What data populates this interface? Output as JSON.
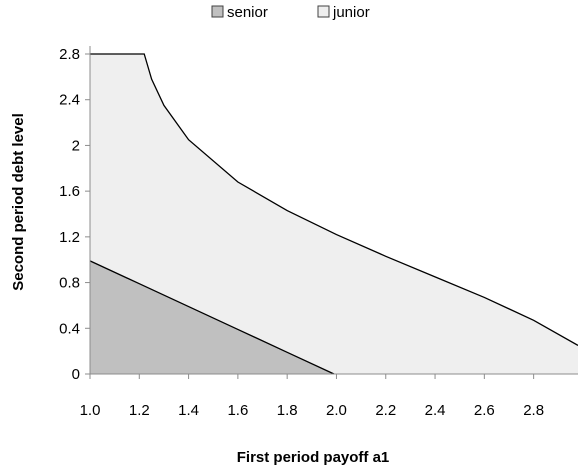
{
  "chart_data": {
    "type": "area",
    "xlabel": "First period payoff a1",
    "ylabel": "Second period debt level",
    "xlim": [
      1.0,
      2.98
    ],
    "ylim": [
      0,
      2.8
    ],
    "x_ticks": [
      "1.0",
      "1.2",
      "1.4",
      "1.6",
      "1.8",
      "2.0",
      "2.2",
      "2.4",
      "2.6",
      "2.8"
    ],
    "y_ticks": [
      "0",
      "0.4",
      "0.8",
      "1.2",
      "1.6",
      "2",
      "2.4",
      "2.8"
    ],
    "legend_position": "top",
    "series": [
      {
        "name": "senior",
        "color": "#c0c0c0",
        "x": [
          1.0,
          1.2,
          1.4,
          1.6,
          1.8,
          1.99
        ],
        "y": [
          0.99,
          0.79,
          0.59,
          0.39,
          0.19,
          0.0
        ]
      },
      {
        "name": "junior",
        "color": "#efefef",
        "x": [
          1.0,
          1.22,
          1.25,
          1.3,
          1.4,
          1.6,
          1.8,
          2.0,
          2.2,
          2.4,
          2.6,
          2.8,
          2.98
        ],
        "y": [
          2.8,
          2.8,
          2.58,
          2.35,
          2.05,
          1.68,
          1.43,
          1.22,
          1.03,
          0.85,
          0.67,
          0.47,
          0.25
        ]
      }
    ]
  }
}
